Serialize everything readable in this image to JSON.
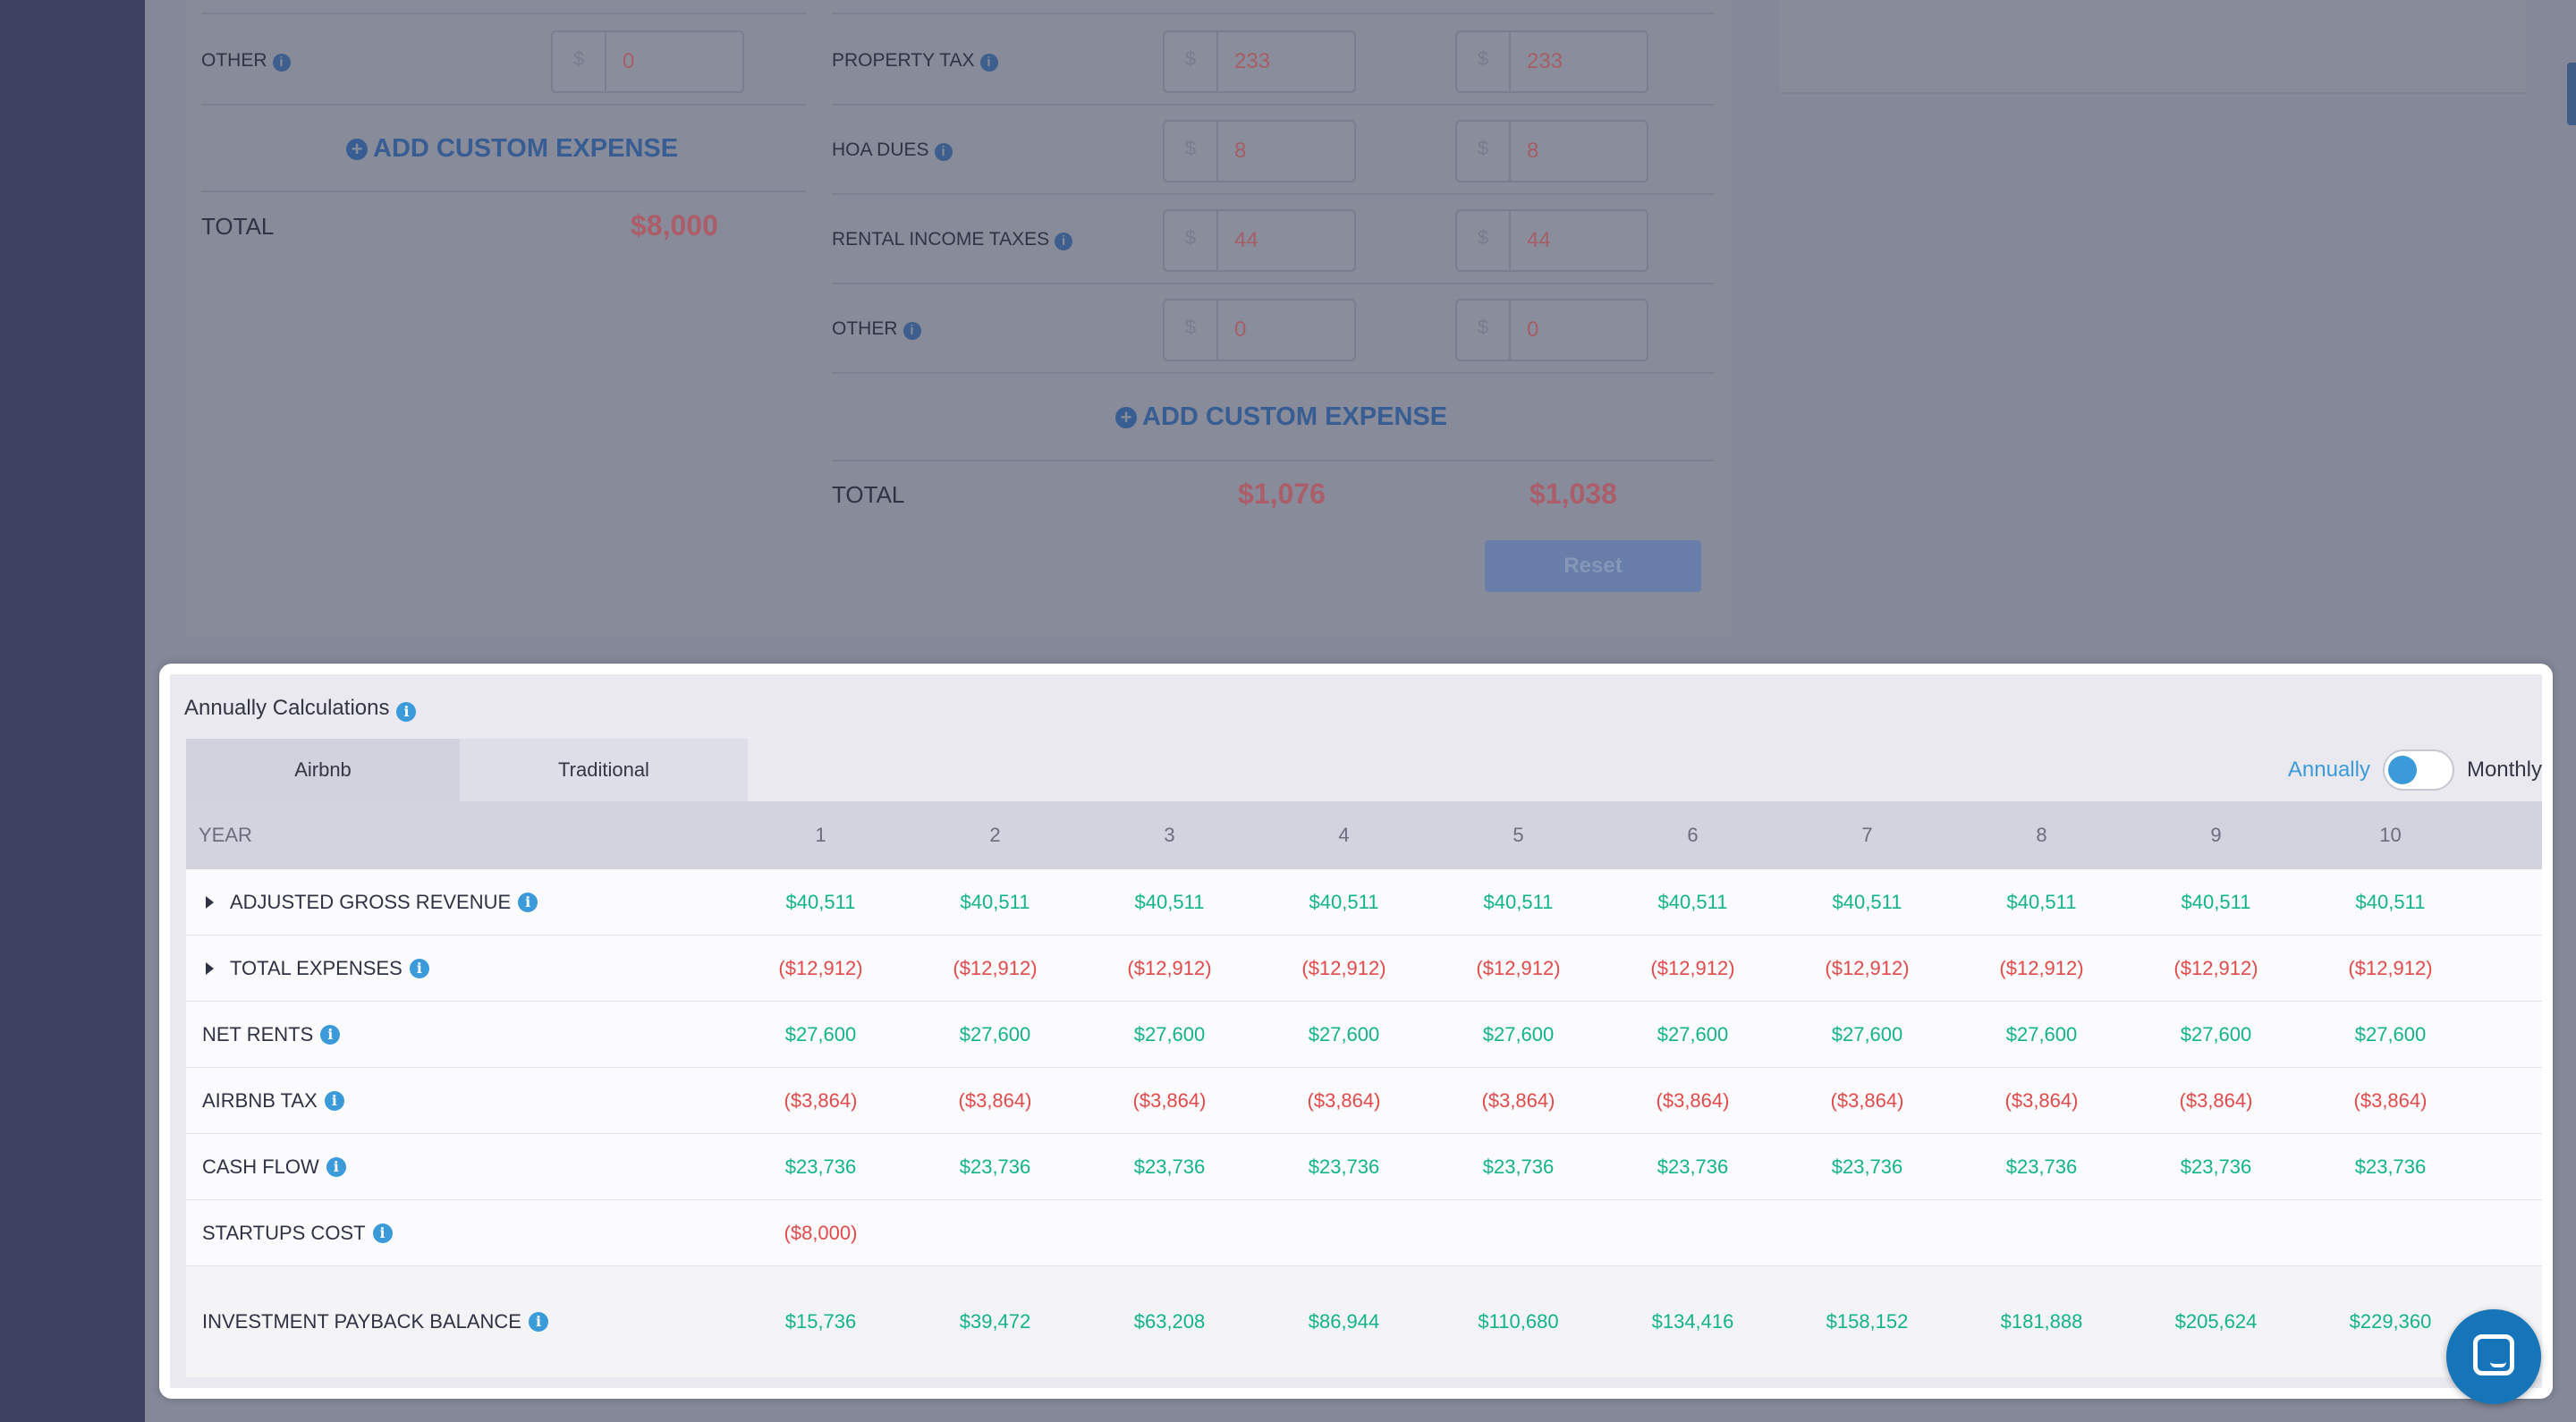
{
  "background": {
    "left_col": {
      "other_label": "OTHER",
      "other_value": "0",
      "add_custom": "ADD CUSTOM EXPENSE",
      "total_label": "TOTAL",
      "total_value": "$8,000"
    },
    "right_col": {
      "rows": [
        {
          "label": "PROPERTY TAX",
          "a": "233",
          "b": "233"
        },
        {
          "label": "HOA DUES",
          "a": "8",
          "b": "8"
        },
        {
          "label": "RENTAL INCOME TAXES",
          "a": "44",
          "b": "44"
        },
        {
          "label": "OTHER",
          "a": "0",
          "b": "0"
        }
      ],
      "add_custom": "ADD CUSTOM EXPENSE",
      "total_label": "TOTAL",
      "total_a": "$1,076",
      "total_b": "$1,038",
      "reset": "Reset"
    },
    "dollar": "$"
  },
  "calc": {
    "title": "Annually Calculations",
    "tabs": [
      {
        "label": "Airbnb",
        "active": true
      },
      {
        "label": "Traditional",
        "active": false
      }
    ],
    "toggle": {
      "left_label": "Annually",
      "right_label": "Monthly",
      "state": "Annually"
    },
    "header": {
      "label": "YEAR",
      "years": [
        "1",
        "2",
        "3",
        "4",
        "5",
        "6",
        "7",
        "8",
        "9",
        "10"
      ]
    },
    "rows": [
      {
        "label": "ADJUSTED GROSS REVENUE",
        "expandable": true,
        "tone": "green",
        "values": [
          "$40,511",
          "$40,511",
          "$40,511",
          "$40,511",
          "$40,511",
          "$40,511",
          "$40,511",
          "$40,511",
          "$40,511",
          "$40,511"
        ]
      },
      {
        "label": "TOTAL EXPENSES",
        "expandable": true,
        "tone": "red",
        "values": [
          "($12,912)",
          "($12,912)",
          "($12,912)",
          "($12,912)",
          "($12,912)",
          "($12,912)",
          "($12,912)",
          "($12,912)",
          "($12,912)",
          "($12,912)"
        ]
      },
      {
        "label": "NET RENTS",
        "expandable": false,
        "tone": "green",
        "values": [
          "$27,600",
          "$27,600",
          "$27,600",
          "$27,600",
          "$27,600",
          "$27,600",
          "$27,600",
          "$27,600",
          "$27,600",
          "$27,600"
        ]
      },
      {
        "label": "AIRBNB TAX",
        "expandable": false,
        "tone": "red",
        "values": [
          "($3,864)",
          "($3,864)",
          "($3,864)",
          "($3,864)",
          "($3,864)",
          "($3,864)",
          "($3,864)",
          "($3,864)",
          "($3,864)",
          "($3,864)"
        ]
      },
      {
        "label": "CASH FLOW",
        "expandable": false,
        "tone": "green",
        "values": [
          "$23,736",
          "$23,736",
          "$23,736",
          "$23,736",
          "$23,736",
          "$23,736",
          "$23,736",
          "$23,736",
          "$23,736",
          "$23,736"
        ]
      },
      {
        "label": "STARTUPS COST",
        "expandable": false,
        "tone": "red",
        "values": [
          "($8,000)",
          "",
          "",
          "",
          "",
          "",
          "",
          "",
          "",
          ""
        ]
      },
      {
        "label": "INVESTMENT PAYBACK BALANCE",
        "expandable": false,
        "tone": "green",
        "values": [
          "$15,736",
          "$39,472",
          "$63,208",
          "$86,944",
          "$110,680",
          "$134,416",
          "$158,152",
          "$181,888",
          "$205,624",
          "$229,360"
        ]
      }
    ]
  },
  "colors": {
    "accent": "#3b9ad9",
    "positive": "#12b38a",
    "negative": "#e04a4a"
  }
}
